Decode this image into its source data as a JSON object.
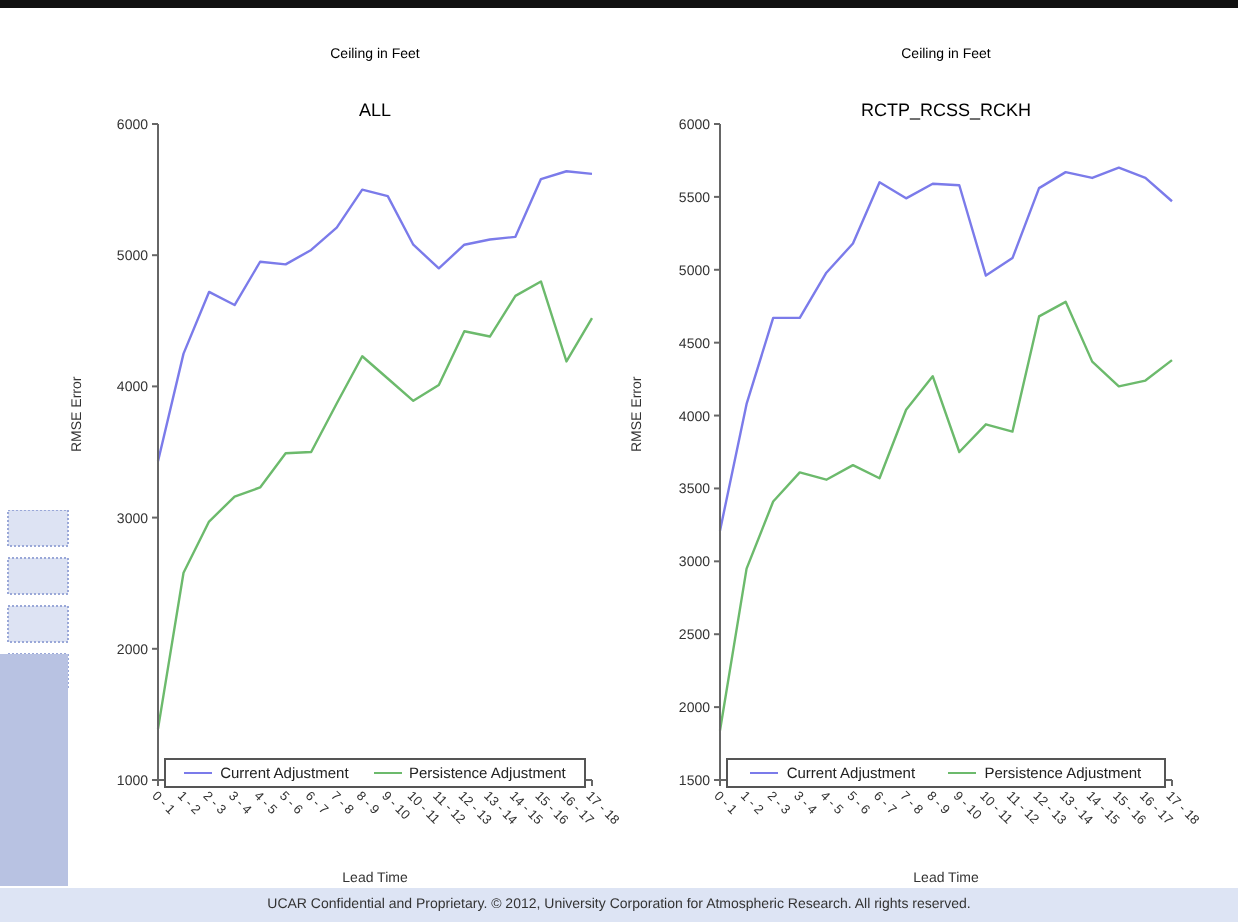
{
  "chart_data": [
    {
      "type": "line",
      "title": "Ceiling in Feet",
      "subtitle": "ALL",
      "xlabel": "Lead Time",
      "ylabel": "RMSE Error",
      "categories": [
        "0 - 1",
        "1 - 2",
        "2 - 3",
        "3 - 4",
        "4 - 5",
        "5 - 6",
        "6 - 7",
        "7 - 8",
        "8 - 9",
        "9 - 10",
        "10 - 11",
        "11 - 12",
        "12 - 13",
        "13 - 14",
        "14 - 15",
        "15 - 16",
        "16 - 17",
        "17 - 18"
      ],
      "series": [
        {
          "name": "Current Adjustment",
          "color": "#7b7bea",
          "values": [
            3430,
            4250,
            4720,
            4620,
            4950,
            4930,
            5040,
            5210,
            5500,
            5450,
            5080,
            4900,
            5080,
            5120,
            5140,
            5580,
            5640,
            5620
          ]
        },
        {
          "name": "Persistence Adjustment",
          "color": "#6cba6c",
          "values": [
            1390,
            2580,
            2970,
            3160,
            3230,
            3490,
            3500,
            3870,
            4230,
            4060,
            3890,
            4010,
            4420,
            4380,
            4690,
            4800,
            4190,
            4520
          ]
        }
      ],
      "ylim": [
        1000,
        6000
      ],
      "yticks": [
        1000,
        2000,
        3000,
        4000,
        5000,
        6000
      ],
      "legend": "bottom",
      "grid": false,
      "annotations": [
        "UCAR Confidential and Proprietary. © 2012, University Corporation for Atmospheric Research. All rights reserved."
      ]
    },
    {
      "type": "line",
      "title": "Ceiling in Feet",
      "subtitle": "RCTP_RCSS_RCKH",
      "xlabel": "Lead Time",
      "ylabel": "RMSE Error",
      "categories": [
        "0 - 1",
        "1 - 2",
        "2 - 3",
        "3 - 4",
        "4 - 5",
        "5 - 6",
        "6 - 7",
        "7 - 8",
        "8 - 9",
        "9 - 10",
        "10 - 11",
        "11 - 12",
        "12 - 13",
        "13 - 14",
        "14 - 15",
        "15 - 16",
        "16 - 17",
        "17 - 18"
      ],
      "series": [
        {
          "name": "Current Adjustment",
          "color": "#7b7bea",
          "values": [
            3210,
            4080,
            4670,
            4670,
            4980,
            5180,
            5600,
            5490,
            5590,
            5580,
            4960,
            5080,
            5560,
            5670,
            5630,
            5700,
            5630,
            5470
          ]
        },
        {
          "name": "Persistence Adjustment",
          "color": "#6cba6c",
          "values": [
            1840,
            2950,
            3410,
            3610,
            3560,
            3660,
            3570,
            4040,
            4270,
            3750,
            3940,
            3890,
            4680,
            4780,
            4370,
            4200,
            4240,
            4380
          ]
        }
      ],
      "ylim": [
        1500,
        6000
      ],
      "yticks": [
        1500,
        2000,
        2500,
        3000,
        3500,
        4000,
        4500,
        5000,
        5500,
        6000
      ],
      "legend": "bottom",
      "grid": false
    }
  ]
}
